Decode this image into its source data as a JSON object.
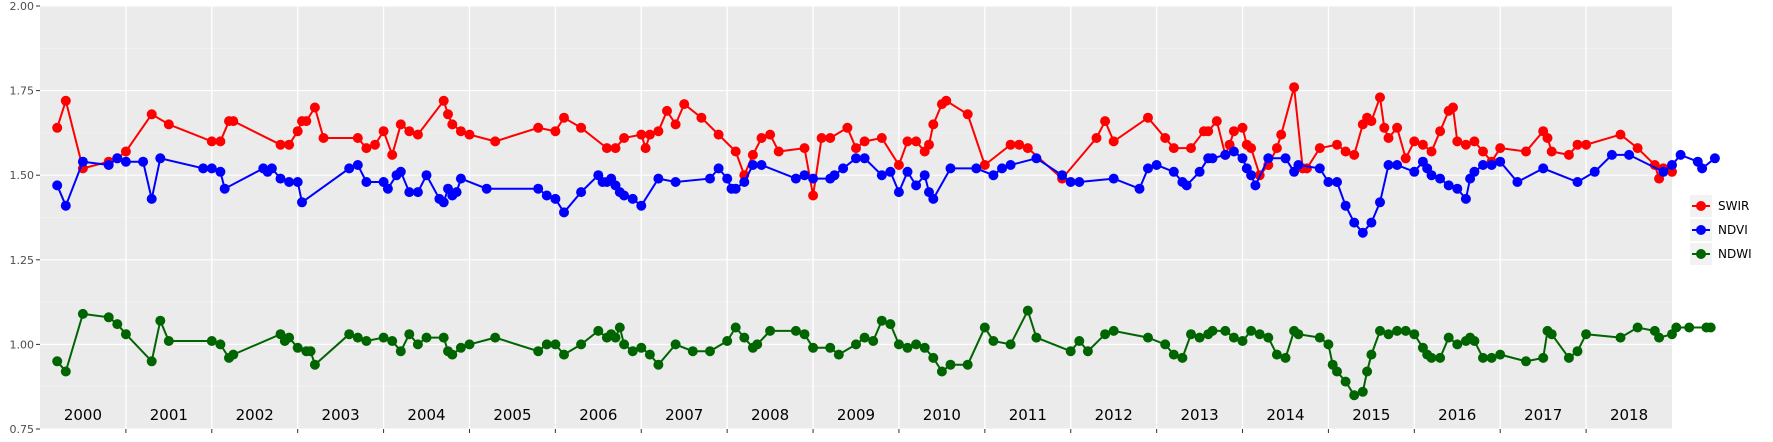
{
  "chart_data": {
    "type": "line",
    "title": "",
    "xlabel": "",
    "ylabel": "",
    "ylim": [
      0.75,
      2.0
    ],
    "yticks": [
      "0.75",
      "1.00",
      "1.25",
      "1.50",
      "1.75",
      "2.00"
    ],
    "year_labels": [
      "2000",
      "2001",
      "2002",
      "2003",
      "2004",
      "2005",
      "2006",
      "2007",
      "2008",
      "2009",
      "2010",
      "2011",
      "2012",
      "2013",
      "2014",
      "2015",
      "2016",
      "2017",
      "2018"
    ],
    "x_range": [
      2000.0,
      2019.0
    ],
    "grid": true,
    "legend_position": "right",
    "series": [
      {
        "name": "SWIR",
        "color": "#ff0000",
        "x": [
          2000.2,
          2000.3,
          2000.5,
          2000.8,
          2000.9,
          2001.0,
          2001.3,
          2001.5,
          2002.0,
          2002.1,
          2002.2,
          2002.25,
          2002.8,
          2002.9,
          2003.0,
          2003.05,
          2003.1,
          2003.2,
          2003.3,
          2003.7,
          2003.8,
          2003.9,
          2004.0,
          2004.1,
          2004.2,
          2004.3,
          2004.4,
          2004.7,
          2004.75,
          2004.8,
          2004.9,
          2005.0,
          2005.3,
          2005.8,
          2006.0,
          2006.1,
          2006.3,
          2006.6,
          2006.7,
          2006.8,
          2007.0,
          2007.05,
          2007.1,
          2007.2,
          2007.3,
          2007.4,
          2007.5,
          2007.7,
          2007.9,
          2008.1,
          2008.2,
          2008.3,
          2008.4,
          2008.5,
          2008.6,
          2008.9,
          2009.0,
          2009.1,
          2009.2,
          2009.4,
          2009.5,
          2009.6,
          2009.8,
          2010.0,
          2010.1,
          2010.2,
          2010.3,
          2010.35,
          2010.4,
          2010.5,
          2010.55,
          2010.8,
          2011.0,
          2011.3,
          2011.4,
          2011.5,
          2011.9,
          2012.3,
          2012.4,
          2012.5,
          2012.9,
          2013.1,
          2013.2,
          2013.4,
          2013.55,
          2013.6,
          2013.7,
          2013.8,
          2013.85,
          2013.9,
          2014.0,
          2014.05,
          2014.1,
          2014.2,
          2014.3,
          2014.4,
          2014.45,
          2014.6,
          2014.7,
          2014.75,
          2014.9,
          2015.1,
          2015.2,
          2015.3,
          2015.4,
          2015.45,
          2015.5,
          2015.6,
          2015.65,
          2015.7,
          2015.8,
          2015.9,
          2016.0,
          2016.1,
          2016.2,
          2016.3,
          2016.4,
          2016.45,
          2016.5,
          2016.6,
          2016.7,
          2016.8,
          2016.9,
          2017.0,
          2017.3,
          2017.5,
          2017.55,
          2017.6,
          2017.8,
          2017.9,
          2018.0,
          2018.4,
          2018.6,
          2018.8,
          2018.85,
          2018.9,
          2019.0
        ],
        "values": [
          1.64,
          1.72,
          1.52,
          1.54,
          1.55,
          1.57,
          1.68,
          1.65,
          1.6,
          1.6,
          1.66,
          1.66,
          1.59,
          1.59,
          1.63,
          1.66,
          1.66,
          1.7,
          1.61,
          1.61,
          1.58,
          1.59,
          1.63,
          1.56,
          1.65,
          1.63,
          1.62,
          1.72,
          1.68,
          1.65,
          1.63,
          1.62,
          1.6,
          1.64,
          1.63,
          1.67,
          1.64,
          1.58,
          1.58,
          1.61,
          1.62,
          1.58,
          1.62,
          1.63,
          1.69,
          1.65,
          1.71,
          1.67,
          1.62,
          1.57,
          1.5,
          1.56,
          1.61,
          1.62,
          1.57,
          1.58,
          1.44,
          1.61,
          1.61,
          1.64,
          1.58,
          1.6,
          1.61,
          1.53,
          1.6,
          1.6,
          1.57,
          1.59,
          1.65,
          1.71,
          1.72,
          1.68,
          1.53,
          1.59,
          1.59,
          1.58,
          1.49,
          1.61,
          1.66,
          1.6,
          1.67,
          1.61,
          1.58,
          1.58,
          1.63,
          1.63,
          1.66,
          1.56,
          1.59,
          1.63,
          1.64,
          1.59,
          1.58,
          1.5,
          1.53,
          1.58,
          1.62,
          1.76,
          1.52,
          1.52,
          1.58,
          1.59,
          1.57,
          1.56,
          1.65,
          1.67,
          1.66,
          1.73,
          1.64,
          1.61,
          1.64,
          1.55,
          1.6,
          1.59,
          1.57,
          1.63,
          1.69,
          1.7,
          1.6,
          1.59,
          1.6,
          1.57,
          1.54,
          1.58,
          1.57,
          1.63,
          1.61,
          1.57,
          1.56,
          1.59,
          1.59,
          1.62,
          1.58,
          1.53,
          1.49,
          1.52,
          1.51
        ]
      },
      {
        "name": "NDVI",
        "color": "#0000ff",
        "x": [
          2000.2,
          2000.3,
          2000.5,
          2000.8,
          2000.9,
          2001.0,
          2001.2,
          2001.3,
          2001.4,
          2001.9,
          2002.0,
          2002.1,
          2002.15,
          2002.6,
          2002.65,
          2002.7,
          2002.8,
          2002.9,
          2003.0,
          2003.05,
          2003.6,
          2003.7,
          2003.8,
          2004.0,
          2004.05,
          2004.15,
          2004.2,
          2004.3,
          2004.4,
          2004.5,
          2004.65,
          2004.7,
          2004.75,
          2004.8,
          2004.85,
          2004.9,
          2005.2,
          2005.8,
          2005.9,
          2006.0,
          2006.1,
          2006.3,
          2006.5,
          2006.55,
          2006.6,
          2006.65,
          2006.7,
          2006.75,
          2006.8,
          2006.9,
          2007.0,
          2007.2,
          2007.4,
          2007.8,
          2007.9,
          2008.0,
          2008.05,
          2008.1,
          2008.2,
          2008.3,
          2008.4,
          2008.8,
          2008.9,
          2009.0,
          2009.2,
          2009.25,
          2009.35,
          2009.5,
          2009.6,
          2009.8,
          2009.9,
          2010.0,
          2010.1,
          2010.2,
          2010.3,
          2010.35,
          2010.4,
          2010.6,
          2010.9,
          2011.1,
          2011.2,
          2011.3,
          2011.6,
          2011.9,
          2012.0,
          2012.1,
          2012.5,
          2012.8,
          2012.9,
          2013.0,
          2013.2,
          2013.3,
          2013.35,
          2013.5,
          2013.6,
          2013.65,
          2013.8,
          2013.9,
          2014.0,
          2014.05,
          2014.1,
          2014.15,
          2014.3,
          2014.5,
          2014.6,
          2014.65,
          2014.9,
          2015.0,
          2015.1,
          2015.2,
          2015.3,
          2015.4,
          2015.5,
          2015.6,
          2015.7,
          2015.8,
          2016.0,
          2016.1,
          2016.15,
          2016.2,
          2016.3,
          2016.4,
          2016.5,
          2016.6,
          2016.65,
          2016.7,
          2016.8,
          2016.9,
          2017.0,
          2017.2,
          2017.5,
          2017.9,
          2018.1,
          2018.3,
          2018.5,
          2018.9,
          2019.0,
          2019.1,
          2019.3,
          2019.35,
          2019.5
        ],
        "values": [
          1.47,
          1.41,
          1.54,
          1.53,
          1.55,
          1.54,
          1.54,
          1.43,
          1.55,
          1.52,
          1.52,
          1.51,
          1.46,
          1.52,
          1.51,
          1.52,
          1.49,
          1.48,
          1.48,
          1.42,
          1.52,
          1.53,
          1.48,
          1.48,
          1.46,
          1.5,
          1.51,
          1.45,
          1.45,
          1.5,
          1.43,
          1.42,
          1.46,
          1.44,
          1.45,
          1.49,
          1.46,
          1.46,
          1.44,
          1.43,
          1.39,
          1.45,
          1.5,
          1.48,
          1.48,
          1.49,
          1.47,
          1.45,
          1.44,
          1.43,
          1.41,
          1.49,
          1.48,
          1.49,
          1.52,
          1.49,
          1.46,
          1.46,
          1.48,
          1.53,
          1.53,
          1.49,
          1.5,
          1.49,
          1.49,
          1.5,
          1.52,
          1.55,
          1.55,
          1.5,
          1.51,
          1.45,
          1.51,
          1.47,
          1.5,
          1.45,
          1.43,
          1.52,
          1.52,
          1.5,
          1.52,
          1.53,
          1.55,
          1.5,
          1.48,
          1.48,
          1.49,
          1.46,
          1.52,
          1.53,
          1.51,
          1.48,
          1.47,
          1.51,
          1.55,
          1.55,
          1.56,
          1.57,
          1.55,
          1.52,
          1.5,
          1.47,
          1.55,
          1.55,
          1.51,
          1.53,
          1.52,
          1.48,
          1.48,
          1.41,
          1.36,
          1.33,
          1.36,
          1.42,
          1.53,
          1.53,
          1.51,
          1.54,
          1.52,
          1.5,
          1.49,
          1.47,
          1.46,
          1.43,
          1.49,
          1.51,
          1.53,
          1.53,
          1.54,
          1.48,
          1.52,
          1.48,
          1.51,
          1.56,
          1.56,
          1.51,
          1.53,
          1.56,
          1.54,
          1.52,
          1.55
        ]
      },
      {
        "name": "NDWI",
        "color": "#006400",
        "x": [
          2000.2,
          2000.3,
          2000.5,
          2000.8,
          2000.9,
          2001.0,
          2001.3,
          2001.4,
          2001.5,
          2002.0,
          2002.1,
          2002.2,
          2002.25,
          2002.8,
          2002.85,
          2002.9,
          2003.0,
          2003.1,
          2003.15,
          2003.2,
          2003.6,
          2003.7,
          2003.8,
          2004.0,
          2004.1,
          2004.2,
          2004.3,
          2004.4,
          2004.5,
          2004.7,
          2004.75,
          2004.8,
          2004.9,
          2005.0,
          2005.3,
          2005.8,
          2005.9,
          2006.0,
          2006.1,
          2006.3,
          2006.5,
          2006.6,
          2006.65,
          2006.7,
          2006.75,
          2006.8,
          2006.9,
          2007.0,
          2007.1,
          2007.2,
          2007.4,
          2007.6,
          2007.8,
          2008.0,
          2008.1,
          2008.2,
          2008.3,
          2008.35,
          2008.5,
          2008.8,
          2008.9,
          2009.0,
          2009.2,
          2009.3,
          2009.5,
          2009.6,
          2009.7,
          2009.8,
          2009.9,
          2010.0,
          2010.1,
          2010.2,
          2010.3,
          2010.4,
          2010.5,
          2010.6,
          2010.8,
          2011.0,
          2011.1,
          2011.3,
          2011.5,
          2011.6,
          2012.0,
          2012.1,
          2012.2,
          2012.4,
          2012.5,
          2012.9,
          2013.1,
          2013.2,
          2013.3,
          2013.4,
          2013.5,
          2013.6,
          2013.65,
          2013.8,
          2013.9,
          2014.0,
          2014.1,
          2014.2,
          2014.3,
          2014.4,
          2014.5,
          2014.6,
          2014.65,
          2014.9,
          2015.0,
          2015.05,
          2015.1,
          2015.2,
          2015.3,
          2015.4,
          2015.45,
          2015.5,
          2015.6,
          2015.7,
          2015.8,
          2015.9,
          2016.0,
          2016.1,
          2016.15,
          2016.2,
          2016.3,
          2016.4,
          2016.5,
          2016.6,
          2016.65,
          2016.7,
          2016.8,
          2016.9,
          2017.0,
          2017.3,
          2017.5,
          2017.55,
          2017.6,
          2017.8,
          2017.9,
          2018.0,
          2018.4,
          2018.6,
          2018.8,
          2018.85,
          2019.0,
          2019.05,
          2019.2,
          2019.4,
          2019.45
        ],
        "values": [
          0.95,
          0.92,
          1.09,
          1.08,
          1.06,
          1.03,
          0.95,
          1.07,
          1.01,
          1.01,
          1.0,
          0.96,
          0.97,
          1.03,
          1.01,
          1.02,
          0.99,
          0.98,
          0.98,
          0.94,
          1.03,
          1.02,
          1.01,
          1.02,
          1.01,
          0.98,
          1.03,
          1.0,
          1.02,
          1.02,
          0.98,
          0.97,
          0.99,
          1.0,
          1.02,
          0.98,
          1.0,
          1.0,
          0.97,
          1.0,
          1.04,
          1.02,
          1.03,
          1.02,
          1.05,
          1.0,
          0.98,
          0.99,
          0.97,
          0.94,
          1.0,
          0.98,
          0.98,
          1.01,
          1.05,
          1.02,
          0.99,
          1.0,
          1.04,
          1.04,
          1.03,
          0.99,
          0.99,
          0.97,
          1.0,
          1.02,
          1.01,
          1.07,
          1.06,
          1.0,
          0.99,
          1.0,
          0.99,
          0.96,
          0.92,
          0.94,
          0.94,
          1.05,
          1.01,
          1.0,
          1.1,
          1.02,
          0.98,
          1.01,
          0.98,
          1.03,
          1.04,
          1.02,
          1.0,
          0.97,
          0.96,
          1.03,
          1.02,
          1.03,
          1.04,
          1.04,
          1.02,
          1.01,
          1.04,
          1.03,
          1.02,
          0.97,
          0.96,
          1.04,
          1.03,
          1.02,
          1.0,
          0.94,
          0.92,
          0.89,
          0.85,
          0.86,
          0.92,
          0.97,
          1.04,
          1.03,
          1.04,
          1.04,
          1.03,
          0.99,
          0.97,
          0.96,
          0.96,
          1.02,
          1.0,
          1.01,
          1.02,
          1.01,
          0.96,
          0.96,
          0.97,
          0.95,
          0.96,
          1.04,
          1.03,
          0.96,
          0.98,
          1.03,
          1.02,
          1.05,
          1.04,
          1.02,
          1.03,
          1.05,
          1.05,
          1.05,
          1.05
        ]
      }
    ]
  }
}
